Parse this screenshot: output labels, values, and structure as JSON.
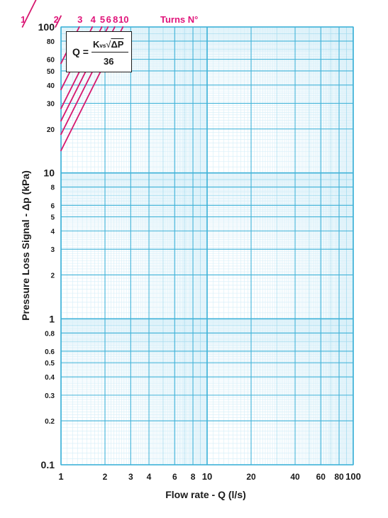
{
  "chart_data": {
    "type": "line",
    "xlabel": "Flow rate - Q (l/s)",
    "ylabel": "Pressure Loss Signal  - Δp (kPa)",
    "x_scale": "log",
    "y_scale": "log",
    "xlim": [
      1,
      100
    ],
    "ylim": [
      0.1,
      100
    ],
    "x_ticks": [
      "1",
      "2",
      "3",
      "4",
      "6",
      "8",
      "10",
      "20",
      "40",
      "60",
      "80",
      "100"
    ],
    "x_tick_values": [
      1,
      2,
      3,
      4,
      6,
      8,
      10,
      20,
      40,
      60,
      80,
      100
    ],
    "y_ticks": [
      "100",
      "80",
      "60",
      "50",
      "40",
      "30",
      "20",
      "10",
      "8",
      "6",
      "5",
      "4",
      "3",
      "2",
      "1",
      "0.8",
      "0.6",
      "0.5",
      "0.4",
      "0.3",
      "0.2",
      "0.1"
    ],
    "y_tick_values": [
      100,
      80,
      60,
      50,
      40,
      30,
      20,
      10,
      8,
      6,
      5,
      4,
      3,
      2,
      1,
      0.8,
      0.6,
      0.5,
      0.4,
      0.3,
      0.2,
      0.1
    ],
    "grid": true,
    "legend_title": "Turns N°",
    "series": [
      {
        "name": "1",
        "kvs": 1.96
      },
      {
        "name": "2",
        "kvs": 3.3
      },
      {
        "name": "3",
        "kvs": 4.8
      },
      {
        "name": "4",
        "kvs": 5.9
      },
      {
        "name": "5",
        "kvs": 6.85
      },
      {
        "name": "6",
        "kvs": 7.55
      },
      {
        "name": "8",
        "kvs": 8.4
      },
      {
        "name": "10",
        "kvs": 9.55
      }
    ],
    "colors": {
      "line": "#d6186e",
      "label": "#e0147a",
      "grid_major": "#3fb2d8",
      "grid_minor": "#a5dcef",
      "grid_fine": "#d4eef8"
    }
  },
  "formula": {
    "lhs": "Q",
    "equals": "=",
    "kv": "K",
    "kv_sub": "vs",
    "radical": "√",
    "dp": "ΔP",
    "denominator": "36"
  }
}
